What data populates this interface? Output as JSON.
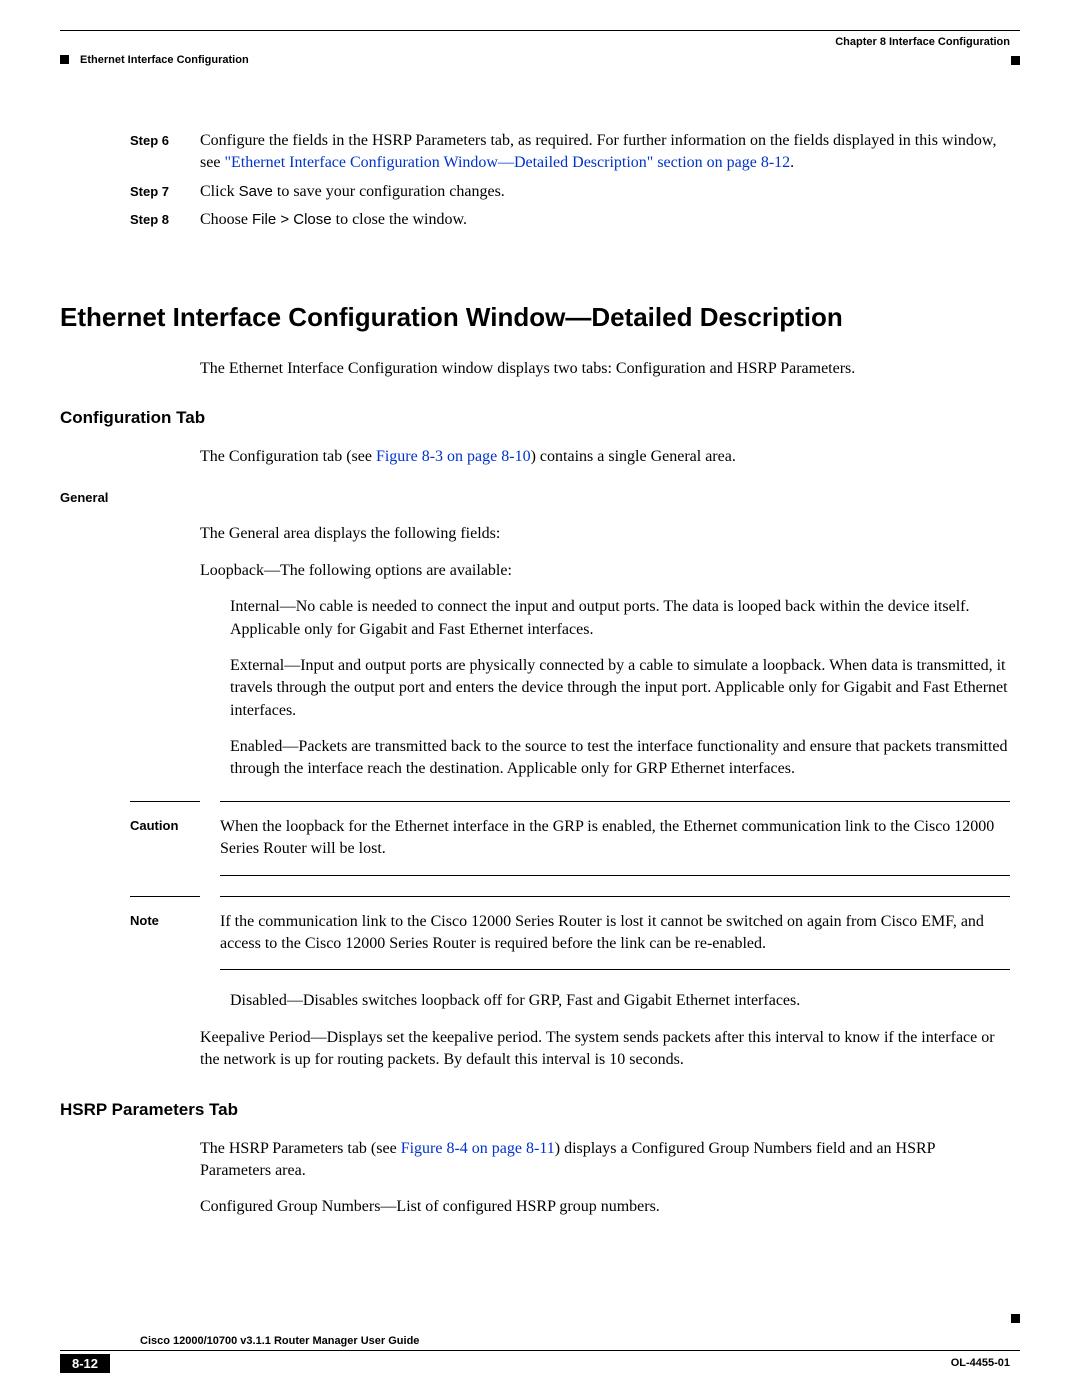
{
  "header": {
    "chapter": "Chapter 8      Interface Configuration",
    "section": "Ethernet Interface Configuration"
  },
  "steps": {
    "s6": {
      "label": "Step 6",
      "text_a": "Configure the fields in the HSRP Parameters tab, as required. For further information on the fields displayed in this window, see  ",
      "link": "\"Ethernet Interface Configuration Window—Detailed Description\" section on page 8-12",
      "text_b": "."
    },
    "s7": {
      "label": "Step 7",
      "text_a": "Click ",
      "sans": "Save",
      "text_b": " to save your configuration changes."
    },
    "s8": {
      "label": "Step 8",
      "text_a": "Choose ",
      "sans": "File > Close",
      "text_b": " to close the window."
    }
  },
  "h1": "Ethernet Interface Configuration Window—Detailed Description",
  "intro": "The Ethernet Interface Configuration window displays two tabs: Configuration and HSRP Parameters.",
  "config_tab": {
    "heading": "Configuration Tab",
    "para_a": "The Configuration tab (see ",
    "para_link": "Figure 8-3 on page 8-10",
    "para_b": ") contains a single General area.",
    "general_h": "General",
    "gen1": "The General area displays the following fields:",
    "gen2": "Loopback—The following options are available:",
    "opt1": "Internal—No cable is needed to connect the input and output ports. The data is looped back within the device itself. Applicable only for Gigabit and Fast Ethernet interfaces.",
    "opt2": "External—Input and output ports are physically connected by a cable to simulate a loopback. When data is transmitted, it travels through the output port and enters the device through the input port. Applicable only for Gigabit and Fast Ethernet interfaces.",
    "opt3": "Enabled—Packets are transmitted back to the source to test the interface functionality and ensure that packets transmitted through the interface reach the destination. Applicable only for GRP Ethernet interfaces.",
    "caution_label": "Caution",
    "caution": "When the loopback for the Ethernet interface in the GRP is enabled, the Ethernet communication link to the Cisco 12000 Series Router will be lost.",
    "note_label": "Note",
    "note": "If the communication link to the Cisco 12000 Series Router is lost it cannot be switched on again from Cisco EMF, and access to the Cisco 12000 Series Router is required before the link can be re-enabled.",
    "opt4": "Disabled—Disables switches loopback off for GRP, Fast and Gigabit Ethernet interfaces.",
    "keepalive": "Keepalive Period—Displays set the keepalive period. The system sends packets after this interval to know if the interface or the network is up for routing packets. By default this interval is 10 seconds."
  },
  "hsrp_tab": {
    "heading": "HSRP Parameters Tab",
    "para_a": "The HSRP Parameters tab (see ",
    "para_link": "Figure 8-4 on page 8-11",
    "para_b": ") displays a Configured Group Numbers field and an HSRP Parameters area.",
    "para2": "Configured Group Numbers—List of configured HSRP group numbers."
  },
  "footer": {
    "book": "Cisco 12000/10700 v3.1.1 Router Manager User Guide",
    "page": "8-12",
    "doc": "OL-4455-01"
  }
}
